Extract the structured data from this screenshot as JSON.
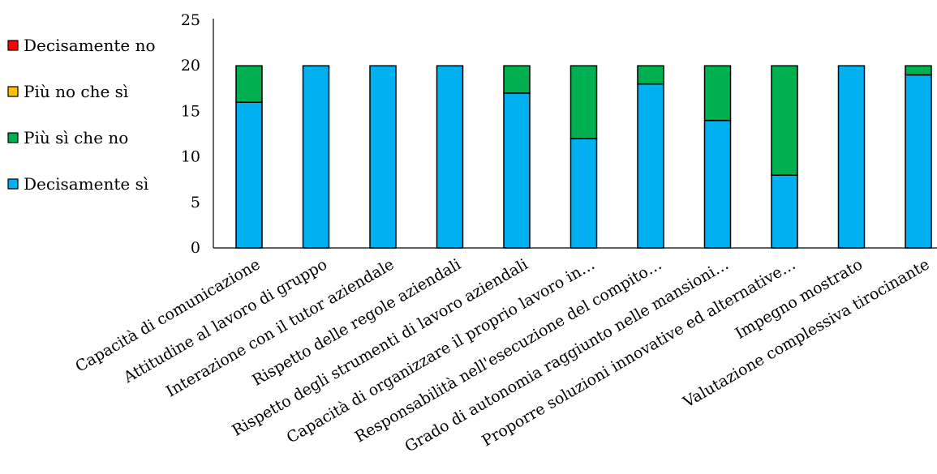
{
  "chart_data": {
    "type": "bar",
    "stacked": true,
    "categories": [
      "Capacità di comunicazione",
      "Attitudine al lavoro di gruppo",
      "Interazione con il tutor aziendale",
      "Rispetto delle regole aziendali",
      "Rispetto degli strumenti di lavoro aziendali",
      "Capacità di organizzare il proprio lavoro in…",
      "Responsabilità nell'esecuzione del compito…",
      "Grado di autonomia raggiunto nelle mansioni…",
      "Proporre soluzioni innovative ed alternative…",
      "Impegno mostrato",
      "Valutazione complessiva tirocinante"
    ],
    "series": [
      {
        "name": "Decisamente sì",
        "color": "#00B0F0",
        "values": [
          16,
          20,
          20,
          20,
          17,
          12,
          18,
          14,
          8,
          20,
          19
        ]
      },
      {
        "name": "Più sì che no",
        "color": "#00B050",
        "values": [
          4,
          0,
          0,
          0,
          3,
          8,
          2,
          6,
          12,
          0,
          1
        ]
      },
      {
        "name": "Più no che sì",
        "color": "#FFC000",
        "values": [
          0,
          0,
          0,
          0,
          0,
          0,
          0,
          0,
          0,
          0,
          0
        ]
      },
      {
        "name": "Decisamente no",
        "color": "#FF0000",
        "values": [
          0,
          0,
          0,
          0,
          0,
          0,
          0,
          0,
          0,
          0,
          0
        ]
      }
    ],
    "legend_order": [
      "Decisamente no",
      "Più no che sì",
      "Più sì che no",
      "Decisamente sì"
    ],
    "legend_position": "left",
    "ylim": [
      0,
      25
    ],
    "yticks": [
      "0",
      "5",
      "10",
      "15",
      "20",
      "25"
    ],
    "grid": false
  }
}
